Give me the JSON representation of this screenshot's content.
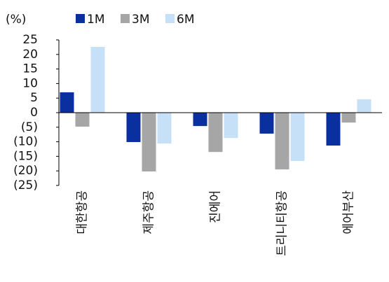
{
  "chart_data": {
    "type": "bar",
    "unit_label": "(%)",
    "categories": [
      "대한항공",
      "제주항공",
      "진에어",
      "트리니티항공",
      "에어부산"
    ],
    "series": [
      {
        "name": "1M",
        "color": "#0a2f9e",
        "values": [
          7.0,
          -10.1,
          -4.6,
          -7.2,
          -11.3
        ]
      },
      {
        "name": "3M",
        "color": "#a6a6a6",
        "values": [
          -4.8,
          -20.2,
          -13.5,
          -19.5,
          -3.4
        ]
      },
      {
        "name": "6M",
        "color": "#c5e0f7",
        "values": [
          22.6,
          -10.6,
          -8.7,
          -16.6,
          4.6
        ]
      }
    ],
    "ylim": [
      -25,
      25
    ],
    "yticks": [
      {
        "value": -25,
        "label": "(25)"
      },
      {
        "value": -20,
        "label": "(20)"
      },
      {
        "value": -15,
        "label": "(15)"
      },
      {
        "value": -10,
        "label": "(10)"
      },
      {
        "value": -5,
        "label": "(5)"
      },
      0,
      5,
      10,
      15,
      20,
      25
    ],
    "grid": false,
    "legend": "top"
  }
}
